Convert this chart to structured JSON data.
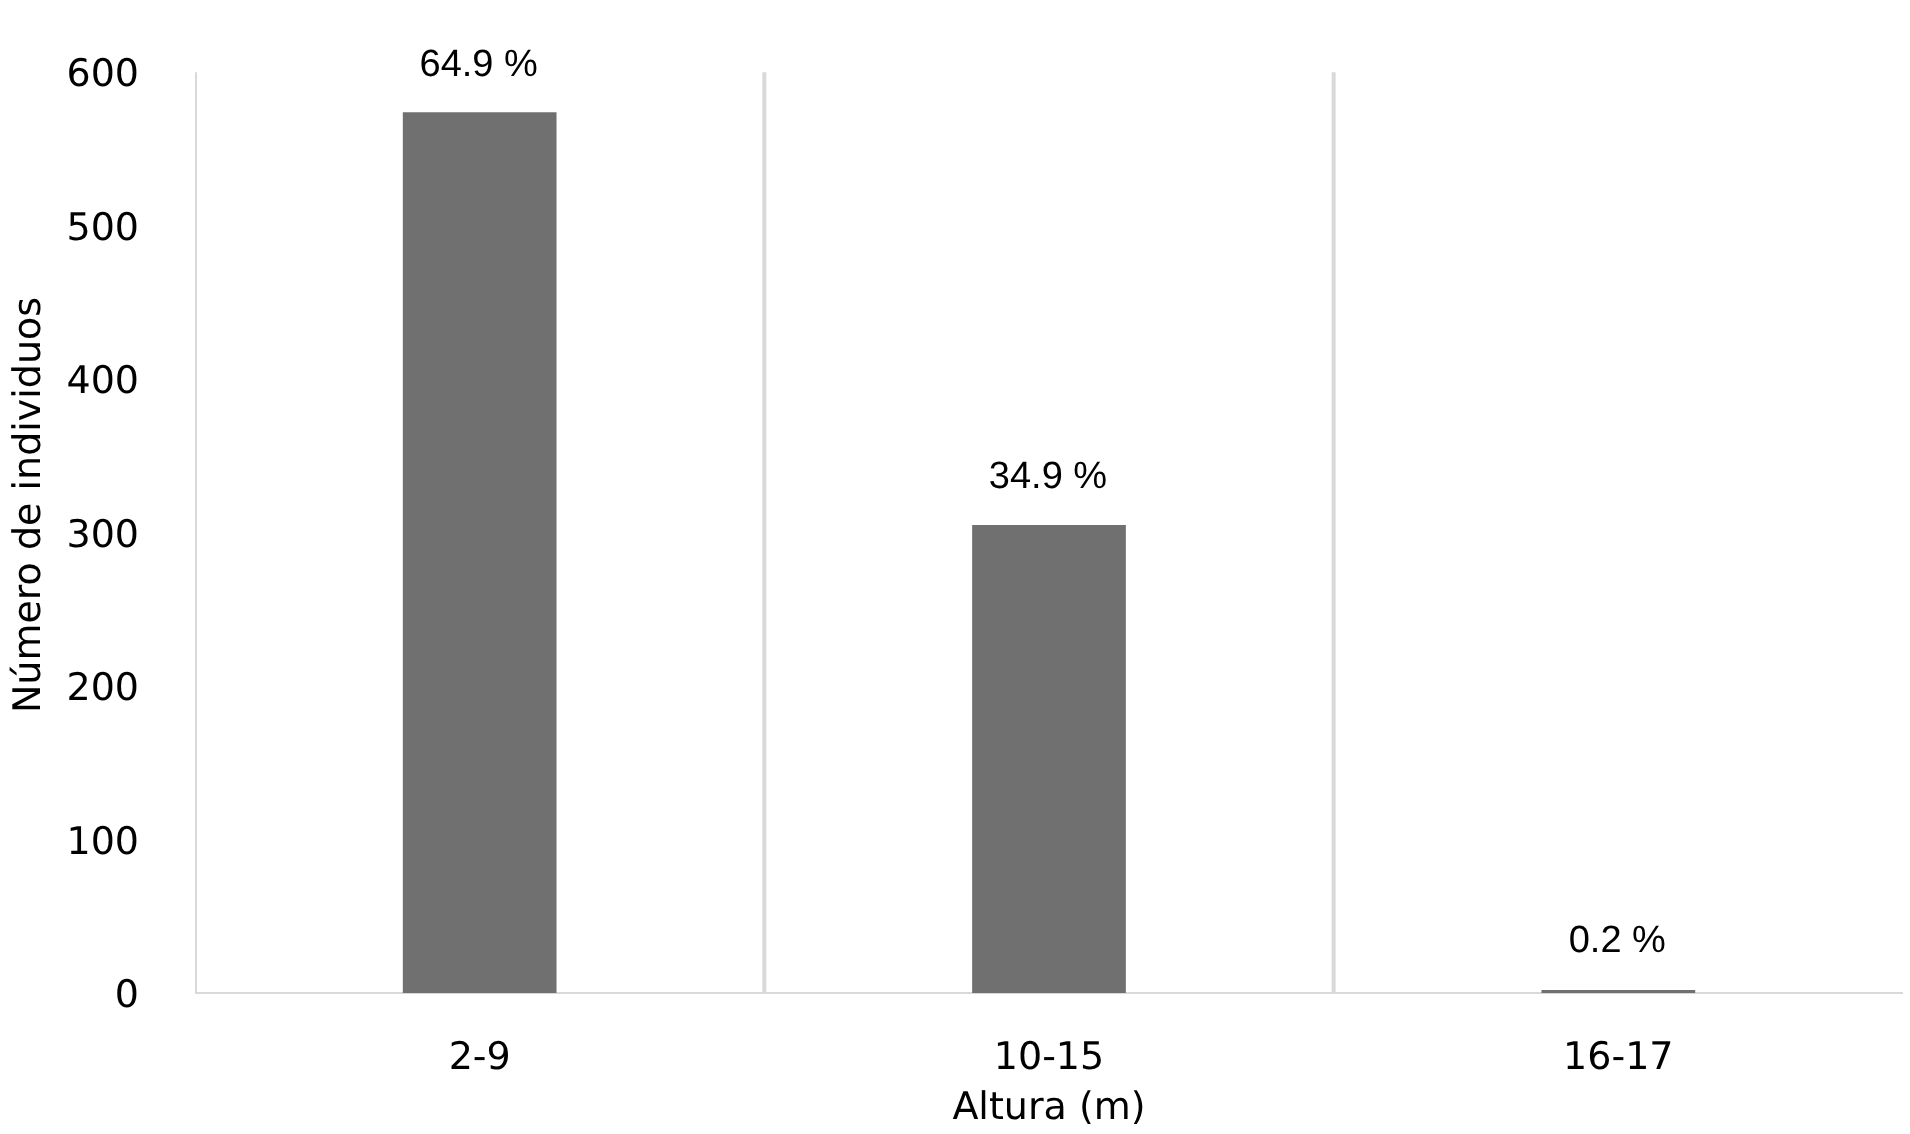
{
  "chart_data": {
    "type": "bar",
    "xlabel": "Altura (m)",
    "ylabel": "Número de individuos",
    "categories": [
      "2-9",
      "10-15",
      "16-17"
    ],
    "values": [
      574,
      305,
      2
    ],
    "annotations": [
      {
        "text": "64.9 %",
        "x": "2-9",
        "y": 574
      },
      {
        "text": "34.9 %",
        "x": "10-15",
        "y": 305
      },
      {
        "text": "0.2 %",
        "x": "16-17",
        "y": 2
      }
    ],
    "color": "#707070",
    "ylim": [
      0,
      600
    ],
    "yticks": [
      0,
      100,
      200,
      300,
      400,
      500,
      600
    ],
    "grid": "x"
  }
}
